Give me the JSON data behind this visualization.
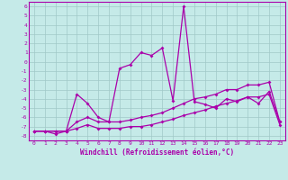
{
  "xlabel": "Windchill (Refroidissement éolien,°C)",
  "background_color": "#c5eae8",
  "grid_color": "#a0c8c8",
  "line_color": "#aa00aa",
  "marker": "D",
  "ylim": [
    -8.5,
    6.5
  ],
  "xlim": [
    -0.5,
    23.5
  ],
  "yticks": [
    -8,
    -7,
    -6,
    -5,
    -4,
    -3,
    -2,
    -1,
    0,
    1,
    2,
    3,
    4,
    5,
    6
  ],
  "xticks": [
    0,
    1,
    2,
    3,
    4,
    5,
    6,
    7,
    8,
    9,
    10,
    11,
    12,
    13,
    14,
    15,
    16,
    17,
    18,
    19,
    20,
    21,
    22,
    23
  ],
  "s1": [
    -7.5,
    -7.5,
    -7.8,
    -7.5,
    -3.5,
    -4.5,
    -6.0,
    -6.5,
    -0.7,
    -0.3,
    1.0,
    0.7,
    1.5,
    -4.2,
    6.0,
    -4.3,
    -4.6,
    -5.0,
    -4.0,
    -4.3,
    -3.8,
    -4.5,
    -3.2,
    -6.5
  ],
  "s2": [
    -7.5,
    -7.5,
    -7.5,
    -7.5,
    -6.5,
    -6.0,
    -6.5,
    -6.5,
    -6.5,
    -6.3,
    -6.0,
    -5.8,
    -5.5,
    -5.0,
    -4.5,
    -4.0,
    -3.8,
    -3.5,
    -3.0,
    -3.0,
    -2.5,
    -2.5,
    -2.2,
    -6.5
  ],
  "s3": [
    -7.5,
    -7.5,
    -7.5,
    -7.5,
    -7.2,
    -6.8,
    -7.2,
    -7.2,
    -7.2,
    -7.0,
    -7.0,
    -6.8,
    -6.5,
    -6.2,
    -5.8,
    -5.5,
    -5.2,
    -4.8,
    -4.5,
    -4.2,
    -3.8,
    -3.8,
    -3.5,
    -6.8
  ]
}
